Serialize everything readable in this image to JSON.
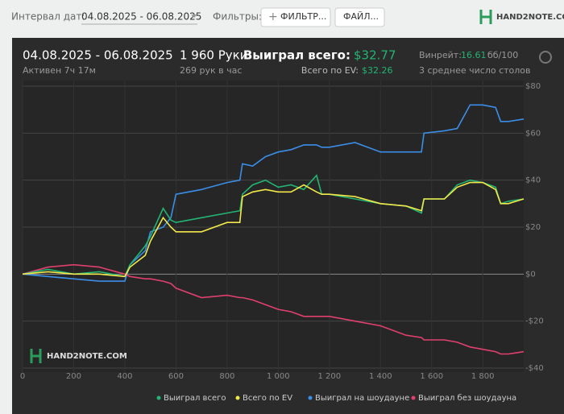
{
  "toolbar": {
    "date_label": "Интервал дат:",
    "date_value": "04.08.2025 - 06.08.2025",
    "filters_label": "Фильтры:",
    "filter_button": "ФИЛЬТР...",
    "file_button": "ФАЙЛ...",
    "logo": "HAND2NOTE.COM"
  },
  "stats": {
    "period": "04.08.2025 - 06.08.2025",
    "active": "Активен 7ч 17м",
    "hands": "1 960 Руки",
    "hands_per_hour": "269 рук в час",
    "won_label": "Выиграл всего:",
    "won_value": "$32.77",
    "ev_label": "Всего по EV:",
    "ev_value": "$32.26",
    "winrate_label": "Винрейт:",
    "winrate_value": "16.61",
    "winrate_unit": "бб/100",
    "tables": "3 среднее число столов"
  },
  "watermark": "HAND2NOTE.COM",
  "chart_data": {
    "type": "line",
    "x": [
      0,
      100,
      200,
      300,
      400,
      420,
      480,
      500,
      550,
      580,
      600,
      700,
      800,
      850,
      860,
      900,
      950,
      1000,
      1050,
      1100,
      1150,
      1170,
      1200,
      1300,
      1400,
      1500,
      1560,
      1570,
      1650,
      1700,
      1750,
      1800,
      1850,
      1870,
      1900,
      1960
    ],
    "series": [
      {
        "name": "Выиграл всего",
        "color": "#22b573",
        "values": [
          0,
          2,
          0,
          1,
          -1,
          4,
          12,
          16,
          28,
          23,
          22,
          24,
          26,
          27,
          34,
          38,
          40,
          37,
          38,
          36,
          42,
          34,
          34,
          32,
          30,
          29,
          26,
          32,
          32,
          38,
          40,
          39,
          37,
          30,
          31,
          32
        ]
      },
      {
        "name": "Всего по EV",
        "color": "#f3e84a",
        "values": [
          0,
          1,
          0,
          0,
          -1,
          3,
          8,
          14,
          24,
          20,
          18,
          18,
          22,
          22,
          33,
          35,
          36,
          35,
          35,
          38,
          35,
          34,
          34,
          33,
          30,
          29,
          27,
          32,
          32,
          37,
          39,
          39,
          36,
          30,
          30,
          32
        ]
      },
      {
        "name": "Выиграл на шоудауне",
        "color": "#3b8ee8",
        "values": [
          0,
          -1,
          -2,
          -3,
          -3,
          4,
          10,
          18,
          20,
          24,
          34,
          36,
          39,
          40,
          47,
          46,
          50,
          52,
          53,
          55,
          55,
          54,
          54,
          56,
          52,
          52,
          52,
          60,
          61,
          62,
          72,
          72,
          71,
          65,
          65,
          66
        ]
      },
      {
        "name": "Выиграл без шоудауна",
        "color": "#e0406e",
        "values": [
          0,
          3,
          4,
          3,
          0,
          -1,
          -2,
          -2,
          -3,
          -4,
          -6,
          -10,
          -9,
          -10,
          -10,
          -11,
          -13,
          -15,
          -16,
          -18,
          -18,
          -18,
          -18,
          -20,
          -22,
          -26,
          -27,
          -28,
          -28,
          -29,
          -31,
          -32,
          -33,
          -34,
          -34,
          -33
        ]
      }
    ],
    "xlim": [
      0,
      1960
    ],
    "xticks": [
      0,
      200,
      400,
      600,
      800,
      {
        "value": 1000,
        "label": "1 000"
      },
      {
        "value": 1200,
        "label": "1 200"
      },
      {
        "value": 1400,
        "label": "1 400"
      },
      {
        "value": 1600,
        "label": "1 600"
      },
      {
        "value": 1800,
        "label": "1 800"
      }
    ],
    "ylim": [
      -40,
      80
    ],
    "yticks": [
      {
        "value": -40,
        "label": "-$40"
      },
      {
        "value": -20,
        "label": "-$20"
      },
      {
        "value": 0,
        "label": "$0"
      },
      {
        "value": 20,
        "label": "$20"
      },
      {
        "value": 40,
        "label": "$40"
      },
      {
        "value": 60,
        "label": "$60"
      },
      {
        "value": 80,
        "label": "$80"
      }
    ],
    "grid": true
  }
}
